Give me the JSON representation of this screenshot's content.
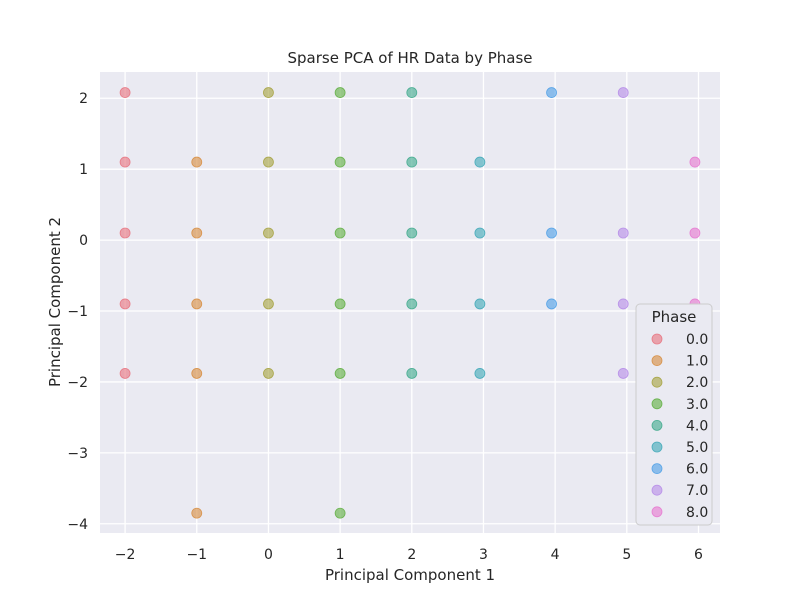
{
  "chart_data": {
    "type": "scatter",
    "title": "Sparse PCA of HR Data by Phase",
    "xlabel": "Principal Component 1",
    "ylabel": "Principal Component 2",
    "xlim": [
      -2.35,
      6.3
    ],
    "ylim": [
      -4.13,
      2.37
    ],
    "xticks": [
      -2,
      -1,
      0,
      1,
      2,
      3,
      4,
      5,
      6
    ],
    "yticks": [
      2,
      1,
      0,
      -1,
      -2,
      -3,
      -4
    ],
    "xtick_labels": [
      "−2",
      "−1",
      "0",
      "1",
      "2",
      "3",
      "4",
      "5",
      "6"
    ],
    "ytick_labels": [
      "2",
      "1",
      "0",
      "−1",
      "−2",
      "−3",
      "−4"
    ],
    "grid": true,
    "legend": {
      "title": "Phase",
      "placement": "lower-right"
    },
    "series": [
      {
        "name": "0.0",
        "color": "#e8707c",
        "points": [
          [
            -2,
            2.08
          ],
          [
            -2,
            1.1
          ],
          [
            -2,
            0.1
          ],
          [
            -2,
            -0.9
          ],
          [
            -2,
            -1.88
          ]
        ]
      },
      {
        "name": "1.0",
        "color": "#d6893a",
        "points": [
          [
            -1,
            1.1
          ],
          [
            -1,
            0.1
          ],
          [
            -1,
            -0.9
          ],
          [
            -1,
            -1.88
          ],
          [
            -1,
            -3.85
          ]
        ]
      },
      {
        "name": "2.0",
        "color": "#a3a03a",
        "points": [
          [
            0,
            2.08
          ],
          [
            0,
            1.1
          ],
          [
            0,
            0.1
          ],
          [
            0,
            -0.9
          ],
          [
            0,
            -1.88
          ]
        ]
      },
      {
        "name": "3.0",
        "color": "#5cad3c",
        "points": [
          [
            1,
            2.08
          ],
          [
            1,
            1.1
          ],
          [
            1,
            0.1
          ],
          [
            1,
            -0.9
          ],
          [
            1,
            -1.88
          ],
          [
            1,
            -3.85
          ]
        ]
      },
      {
        "name": "4.0",
        "color": "#3ba88a",
        "points": [
          [
            2,
            2.08
          ],
          [
            2,
            1.1
          ],
          [
            2,
            0.1
          ],
          [
            2,
            -0.9
          ],
          [
            2,
            -1.88
          ]
        ]
      },
      {
        "name": "5.0",
        "color": "#3aa6b6",
        "points": [
          [
            2.95,
            1.1
          ],
          [
            2.95,
            0.1
          ],
          [
            2.95,
            -0.9
          ],
          [
            2.95,
            -1.88
          ]
        ]
      },
      {
        "name": "6.0",
        "color": "#4a9de6",
        "points": [
          [
            3.95,
            2.08
          ],
          [
            3.95,
            0.1
          ],
          [
            3.95,
            -0.9
          ]
        ]
      },
      {
        "name": "7.0",
        "color": "#b58ae8",
        "points": [
          [
            4.95,
            2.08
          ],
          [
            4.95,
            0.1
          ],
          [
            4.95,
            -0.9
          ],
          [
            4.95,
            -1.88
          ]
        ]
      },
      {
        "name": "8.0",
        "color": "#e674cf",
        "points": [
          [
            5.95,
            1.1
          ],
          [
            5.95,
            0.1
          ],
          [
            5.95,
            -0.9
          ]
        ]
      }
    ]
  }
}
